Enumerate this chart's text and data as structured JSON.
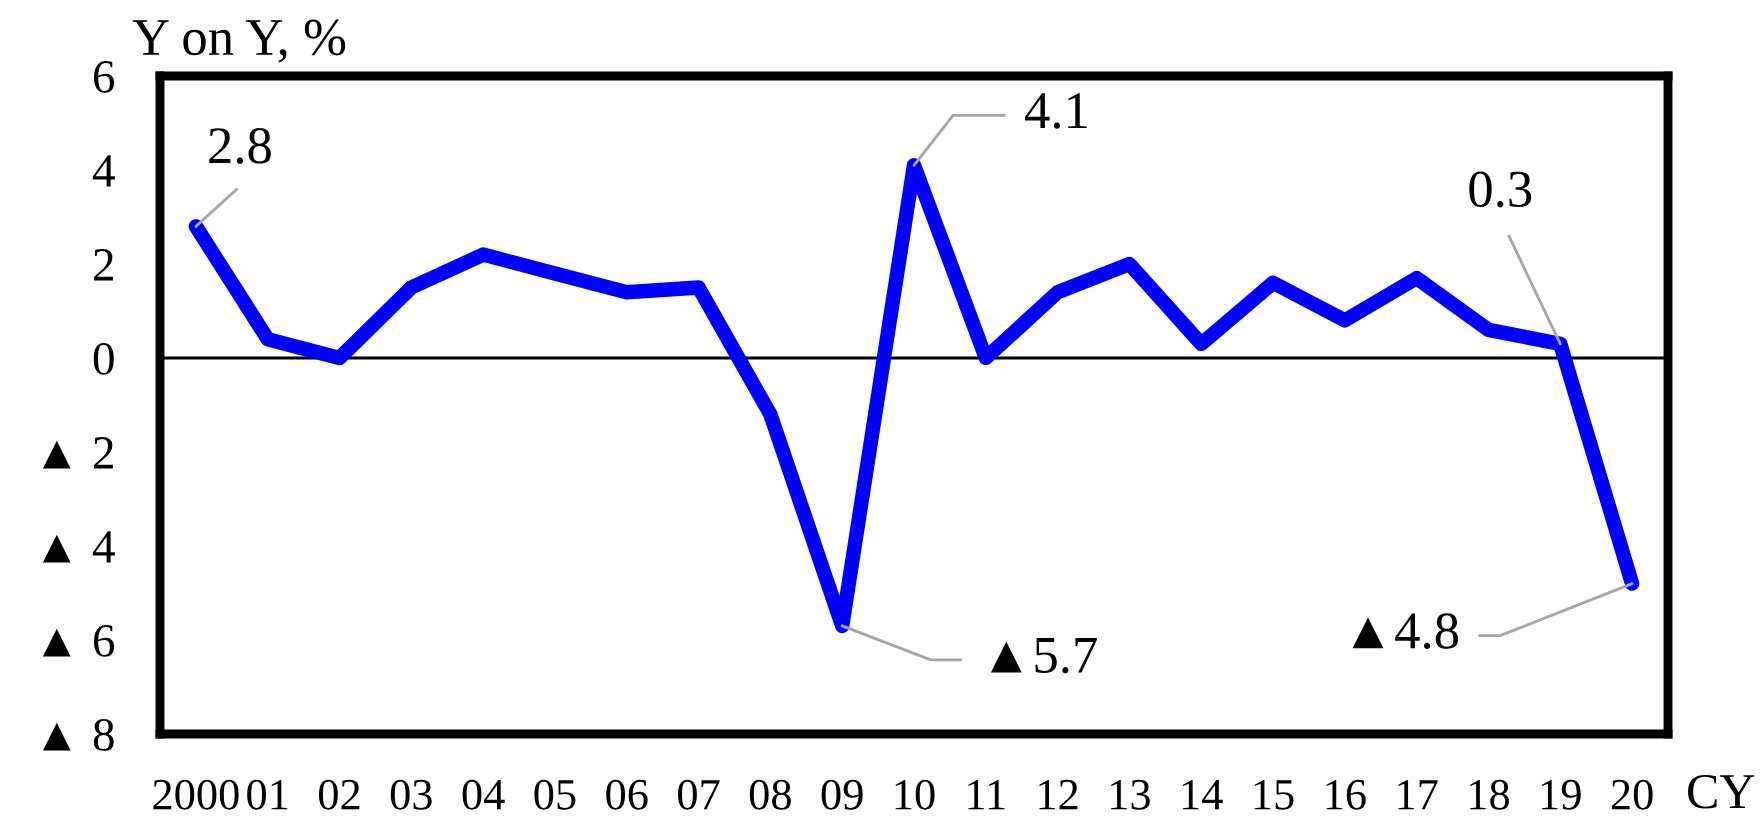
{
  "chart_data": {
    "type": "line",
    "ylabel": "Y on Y, %",
    "xlabel": "CY",
    "categories": [
      "2000",
      "01",
      "02",
      "03",
      "04",
      "05",
      "06",
      "07",
      "08",
      "09",
      "10",
      "11",
      "12",
      "13",
      "14",
      "15",
      "16",
      "17",
      "18",
      "19",
      "20"
    ],
    "series": [
      {
        "color": "#0000ff",
        "line_style": "solid",
        "values": [
          2.8,
          0.4,
          0.0,
          1.5,
          2.2,
          1.8,
          1.4,
          1.5,
          -1.2,
          -5.7,
          4.1,
          0.0,
          1.4,
          2.0,
          0.3,
          1.6,
          0.8,
          1.7,
          0.6,
          0.3,
          -4.8
        ]
      }
    ],
    "annotations": [
      {
        "text": "2.8",
        "x": "2000",
        "y": 2.8
      },
      {
        "text": "▲5.7",
        "x": "09",
        "y": -5.7
      },
      {
        "text": "4.1",
        "x": "10",
        "y": 4.1
      },
      {
        "text": "0.3",
        "x": "19",
        "y": 0.3
      },
      {
        "text": "▲4.8",
        "x": "20",
        "y": -4.8
      }
    ],
    "ylim": [
      -8,
      6
    ],
    "yticks": [
      6,
      4,
      2,
      0,
      {
        "value": -2,
        "label": "▲ 2"
      },
      {
        "value": -4,
        "label": "▲ 4"
      },
      {
        "value": -6,
        "label": "▲ 6"
      },
      {
        "value": -8,
        "label": "▲ 8"
      }
    ],
    "ref_lines": [
      {
        "axis": "y",
        "value": 0,
        "color": "#000000"
      }
    ]
  }
}
